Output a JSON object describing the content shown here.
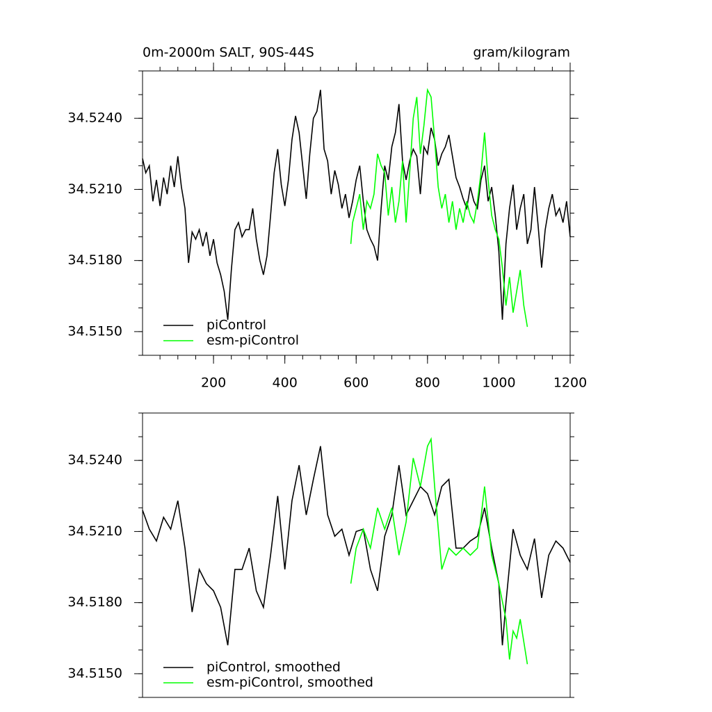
{
  "chart_data": [
    {
      "type": "line",
      "title": "0m-2000m SALT, 90S-44S",
      "units": "gram/kilogram",
      "xlim": [
        1,
        1200
      ],
      "xticks": [
        200,
        400,
        600,
        800,
        1000,
        1200
      ],
      "ylim": [
        34.514,
        34.526
      ],
      "yticks": [
        {
          "value": 34.515,
          "label": "34.5150"
        },
        {
          "value": 34.518,
          "label": "34.5180"
        },
        {
          "value": 34.521,
          "label": "34.5210"
        },
        {
          "value": 34.524,
          "label": "34.5240"
        }
      ],
      "legend": "lower left",
      "series": [
        {
          "name": "piControl",
          "color": "#000000",
          "x": [
            1,
            10,
            20,
            30,
            40,
            50,
            60,
            70,
            80,
            90,
            100,
            110,
            120,
            130,
            140,
            150,
            160,
            170,
            180,
            190,
            200,
            210,
            220,
            230,
            240,
            250,
            260,
            270,
            280,
            290,
            300,
            310,
            320,
            330,
            340,
            350,
            360,
            370,
            380,
            390,
            400,
            410,
            420,
            430,
            440,
            450,
            460,
            470,
            480,
            490,
            500,
            510,
            520,
            530,
            540,
            550,
            560,
            570,
            580,
            590,
            600,
            610,
            620,
            630,
            640,
            650,
            660,
            670,
            680,
            690,
            700,
            710,
            720,
            730,
            740,
            750,
            760,
            770,
            780,
            790,
            800,
            810,
            820,
            830,
            840,
            850,
            860,
            870,
            880,
            890,
            900,
            910,
            920,
            930,
            940,
            950,
            960,
            970,
            980,
            990,
            1000,
            1010,
            1020,
            1030,
            1040,
            1050,
            1060,
            1070,
            1080,
            1090,
            1100,
            1110,
            1120,
            1130,
            1140,
            1150,
            1160,
            1170,
            1180,
            1190,
            1200
          ],
          "values": [
            34.5223,
            34.5217,
            34.522,
            34.5205,
            34.5214,
            34.5203,
            34.5215,
            34.5208,
            34.522,
            34.5211,
            34.5224,
            34.5211,
            34.5202,
            34.5179,
            34.5192,
            34.5189,
            34.5193,
            34.5186,
            34.5192,
            34.5182,
            34.5189,
            34.5179,
            34.5174,
            34.5167,
            34.5155,
            34.5176,
            34.5193,
            34.5196,
            34.519,
            34.5193,
            34.5193,
            34.5202,
            34.5189,
            34.518,
            34.5174,
            34.5182,
            34.5199,
            34.5217,
            34.5227,
            34.5212,
            34.5203,
            34.5214,
            34.5231,
            34.5241,
            34.5234,
            34.522,
            34.5206,
            34.5225,
            34.524,
            34.5243,
            34.5252,
            34.5227,
            34.5222,
            34.5208,
            34.5218,
            34.5212,
            34.5202,
            34.5208,
            34.5198,
            34.5205,
            34.5214,
            34.522,
            34.5205,
            34.5193,
            34.5189,
            34.5186,
            34.518,
            34.5202,
            34.522,
            34.5214,
            34.5228,
            34.5234,
            34.5246,
            34.5222,
            34.5214,
            34.5222,
            34.5227,
            34.5224,
            34.5208,
            34.5228,
            34.5225,
            34.5236,
            34.5231,
            34.522,
            34.5225,
            34.5228,
            34.5233,
            34.5224,
            34.5215,
            34.5211,
            34.5206,
            34.5202,
            34.5211,
            34.5205,
            34.5202,
            34.5214,
            34.522,
            34.5205,
            34.5211,
            34.5199,
            34.5184,
            34.5155,
            34.5187,
            34.5202,
            34.5212,
            34.5193,
            34.5202,
            34.5208,
            34.5187,
            34.5193,
            34.5211,
            34.5195,
            34.5177,
            34.5193,
            34.5202,
            34.5208,
            34.5199,
            34.5202,
            34.5196,
            34.5205,
            34.519
          ]
        },
        {
          "name": "esm-piControl",
          "color": "#00ff00",
          "x": [
            585,
            590,
            600,
            610,
            620,
            630,
            640,
            650,
            660,
            670,
            680,
            690,
            700,
            710,
            720,
            730,
            740,
            750,
            760,
            770,
            780,
            790,
            800,
            810,
            820,
            830,
            840,
            850,
            860,
            870,
            880,
            890,
            900,
            910,
            920,
            930,
            940,
            950,
            960,
            970,
            980,
            990,
            1000,
            1010,
            1020,
            1030,
            1040,
            1050,
            1060,
            1070,
            1080
          ],
          "values": [
            34.5187,
            34.5196,
            34.5202,
            34.5208,
            34.5193,
            34.5205,
            34.5202,
            34.5208,
            34.5225,
            34.522,
            34.5217,
            34.5199,
            34.5211,
            34.5196,
            34.5205,
            34.5222,
            34.5196,
            34.5217,
            34.524,
            34.5249,
            34.5225,
            34.5237,
            34.5252,
            34.5249,
            34.5231,
            34.5211,
            34.5202,
            34.5208,
            34.5196,
            34.5205,
            34.5193,
            34.5202,
            34.5196,
            34.5205,
            34.5199,
            34.5196,
            34.5205,
            34.5217,
            34.5234,
            34.5214,
            34.5199,
            34.5193,
            34.5189,
            34.5177,
            34.5161,
            34.5173,
            34.5158,
            34.5167,
            34.5176,
            34.5161,
            34.5152
          ]
        }
      ]
    },
    {
      "type": "line",
      "xlim": [
        1,
        1200
      ],
      "ylim": [
        34.514,
        34.526
      ],
      "yticks": [
        {
          "value": 34.515,
          "label": "34.5150"
        },
        {
          "value": 34.518,
          "label": "34.5180"
        },
        {
          "value": 34.521,
          "label": "34.5210"
        },
        {
          "value": 34.524,
          "label": "34.5240"
        }
      ],
      "legend": "lower left",
      "series": [
        {
          "name": "piControl, smoothed",
          "color": "#000000",
          "x": [
            1,
            20,
            40,
            60,
            80,
            100,
            120,
            140,
            160,
            180,
            200,
            220,
            240,
            260,
            280,
            300,
            320,
            340,
            360,
            380,
            400,
            420,
            440,
            460,
            480,
            500,
            520,
            540,
            560,
            580,
            600,
            620,
            640,
            660,
            680,
            700,
            720,
            740,
            760,
            780,
            800,
            820,
            840,
            860,
            880,
            900,
            920,
            940,
            960,
            980,
            1000,
            1010,
            1020,
            1040,
            1060,
            1080,
            1100,
            1120,
            1140,
            1160,
            1180,
            1200
          ],
          "values": [
            34.5219,
            34.5211,
            34.5206,
            34.5216,
            34.5211,
            34.5223,
            34.5203,
            34.5176,
            34.5194,
            34.5188,
            34.5185,
            34.5178,
            34.5162,
            34.5194,
            34.5194,
            34.5203,
            34.5185,
            34.5178,
            34.52,
            34.5225,
            34.5194,
            34.5223,
            34.5238,
            34.5217,
            34.5232,
            34.5246,
            34.5217,
            34.5208,
            34.5211,
            34.52,
            34.521,
            34.5211,
            34.5194,
            34.5185,
            34.5208,
            34.5217,
            34.5238,
            34.5217,
            34.5223,
            34.5229,
            34.5226,
            34.5217,
            34.5229,
            34.5232,
            34.5203,
            34.5203,
            34.5206,
            34.5208,
            34.522,
            34.5203,
            34.5188,
            34.5162,
            34.518,
            34.5211,
            34.52,
            34.5194,
            34.5207,
            34.5182,
            34.52,
            34.5206,
            34.5203,
            34.5197
          ]
        },
        {
          "name": "esm-piControl, smoothed",
          "color": "#00ff00",
          "x": [
            585,
            600,
            620,
            640,
            660,
            680,
            700,
            720,
            740,
            760,
            780,
            800,
            810,
            820,
            840,
            860,
            880,
            900,
            920,
            940,
            960,
            980,
            1000,
            1020,
            1030,
            1040,
            1050,
            1060,
            1080
          ],
          "values": [
            34.5188,
            34.5203,
            34.5211,
            34.5203,
            34.522,
            34.5211,
            34.522,
            34.52,
            34.5214,
            34.5241,
            34.5229,
            34.5246,
            34.5249,
            34.5229,
            34.5194,
            34.5203,
            34.52,
            34.5203,
            34.52,
            34.5203,
            34.5229,
            34.52,
            34.5188,
            34.5173,
            34.5156,
            34.5168,
            34.5165,
            34.5173,
            34.5154
          ]
        }
      ]
    }
  ]
}
